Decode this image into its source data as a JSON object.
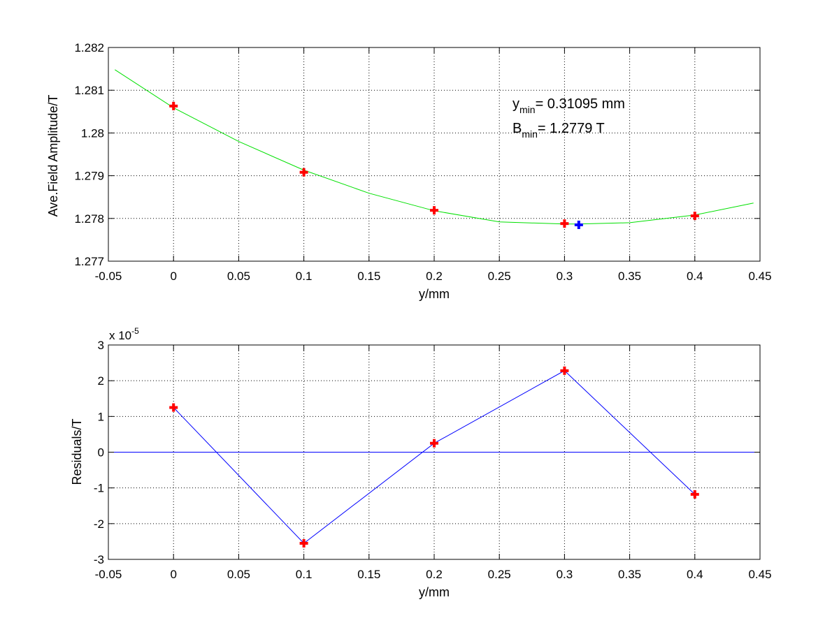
{
  "colors": {
    "fit_curve": "#00e000",
    "measured_marker": "#ff0000",
    "minimum_marker": "#0000ff",
    "residual_line": "#0000ff"
  },
  "chart_data": [
    {
      "type": "line",
      "xlabel": "y/mm",
      "ylabel": "Ave.Field Amplitude/T",
      "xlim": [
        -0.05,
        0.45
      ],
      "ylim": [
        1.277,
        1.282
      ],
      "grid": true,
      "xticks": [
        "-0.05",
        "0",
        "0.05",
        "0.1",
        "0.15",
        "0.2",
        "0.25",
        "0.3",
        "0.35",
        "0.4",
        "0.45"
      ],
      "yticks": [
        "1.277",
        "1.278",
        "1.279",
        "1.28",
        "1.281",
        "1.282"
      ],
      "series": [
        {
          "style": "line",
          "x": [
            -0.045,
            0.0,
            0.05,
            0.1,
            0.15,
            0.2,
            0.25,
            0.3,
            0.31095,
            0.35,
            0.4,
            0.445
          ],
          "y": [
            1.28148,
            1.28059,
            1.2798,
            1.27913,
            1.27859,
            1.27818,
            1.27792,
            1.27787,
            1.27787,
            1.2779,
            1.27808,
            1.27836
          ]
        },
        {
          "style": "markers",
          "marker": "plus",
          "x": [
            0.0,
            0.1,
            0.2,
            0.3,
            0.4
          ],
          "y": [
            1.28063,
            1.27908,
            1.27819,
            1.27788,
            1.27806
          ]
        },
        {
          "style": "markers",
          "marker": "plus",
          "x": [
            0.31095
          ],
          "y": [
            1.27785
          ]
        }
      ],
      "annotations": [
        {
          "main": "y",
          "sub": "min",
          "rest": "= 0.31095 mm"
        },
        {
          "main": "B",
          "sub": "min",
          "rest": "= 1.2779 T"
        }
      ]
    },
    {
      "type": "line",
      "xlabel": "y/mm",
      "ylabel": "Residuals/T",
      "xlim": [
        -0.05,
        0.45
      ],
      "ylim": [
        -3,
        3
      ],
      "y_multiplier": "x 10",
      "y_multiplier_exp": "-5",
      "grid": true,
      "xticks": [
        "-0.05",
        "0",
        "0.05",
        "0.1",
        "0.15",
        "0.2",
        "0.25",
        "0.3",
        "0.35",
        "0.4",
        "0.45"
      ],
      "yticks": [
        "-3",
        "-2",
        "-1",
        "0",
        "1",
        "2",
        "3"
      ],
      "zero_line": 0,
      "series": [
        {
          "style": "line+markers",
          "marker": "plus",
          "x": [
            0.0,
            0.1,
            0.2,
            0.3,
            0.4
          ],
          "y": [
            1.25,
            -2.55,
            0.25,
            2.28,
            -1.18
          ]
        }
      ]
    }
  ]
}
